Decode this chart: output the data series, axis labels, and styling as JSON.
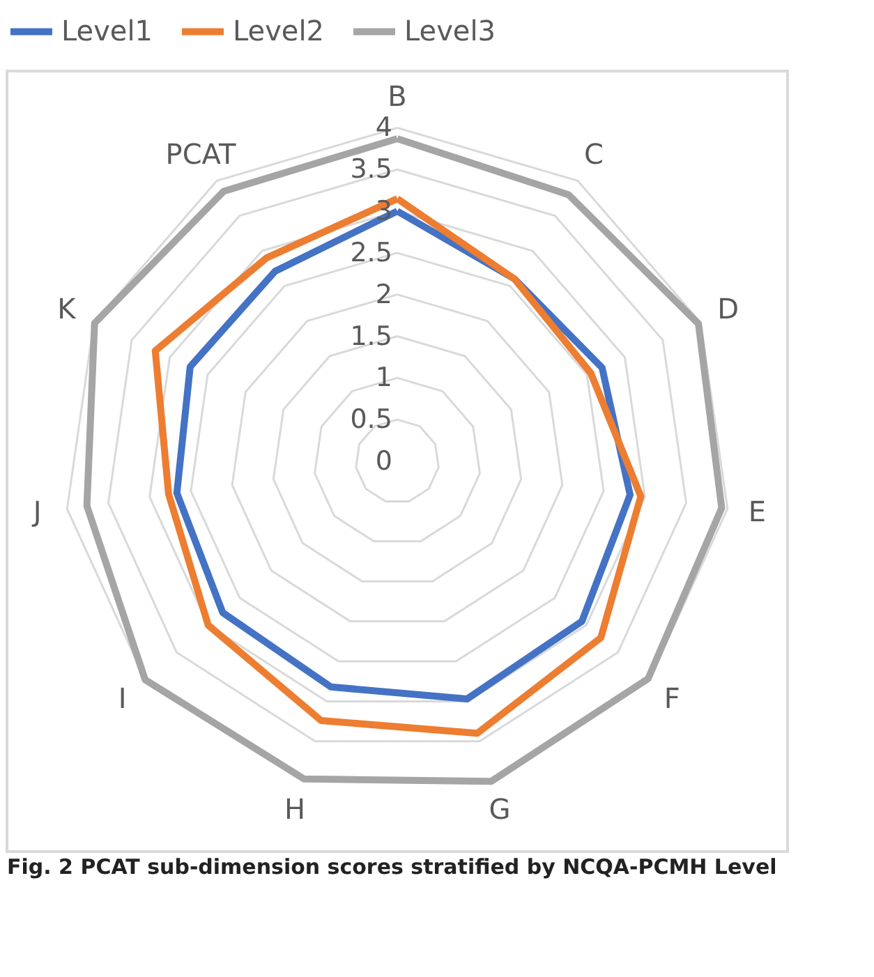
{
  "chart_data": {
    "type": "radar",
    "title": "Fig. 2  PCAT sub-dimension scores stratified by NCQA-PCMH Level",
    "categories": [
      "B",
      "C",
      "D",
      "E",
      "F",
      "G",
      "H",
      "I",
      "J",
      "K",
      "PCAT"
    ],
    "series": [
      {
        "name": "Level1",
        "color": "#4472c4",
        "values": [
          3.0,
          2.6,
          2.7,
          2.82,
          2.93,
          2.97,
          2.82,
          2.77,
          2.67,
          2.73,
          2.71
        ]
      },
      {
        "name": "Level2",
        "color": "#ed7d31",
        "values": [
          3.15,
          2.6,
          2.55,
          2.95,
          3.23,
          3.4,
          3.24,
          3.0,
          2.77,
          3.19,
          2.9
        ]
      },
      {
        "name": "Level3",
        "color": "#a5a5a5",
        "values": [
          3.87,
          3.8,
          3.97,
          3.93,
          3.98,
          4.0,
          3.97,
          4.0,
          3.76,
          3.99,
          3.85
        ]
      }
    ],
    "ylim": [
      0,
      4
    ],
    "yticks": [
      0,
      0.5,
      1,
      1.5,
      2,
      2.5,
      3,
      3.5,
      4
    ],
    "grid": true,
    "legend": "top"
  }
}
